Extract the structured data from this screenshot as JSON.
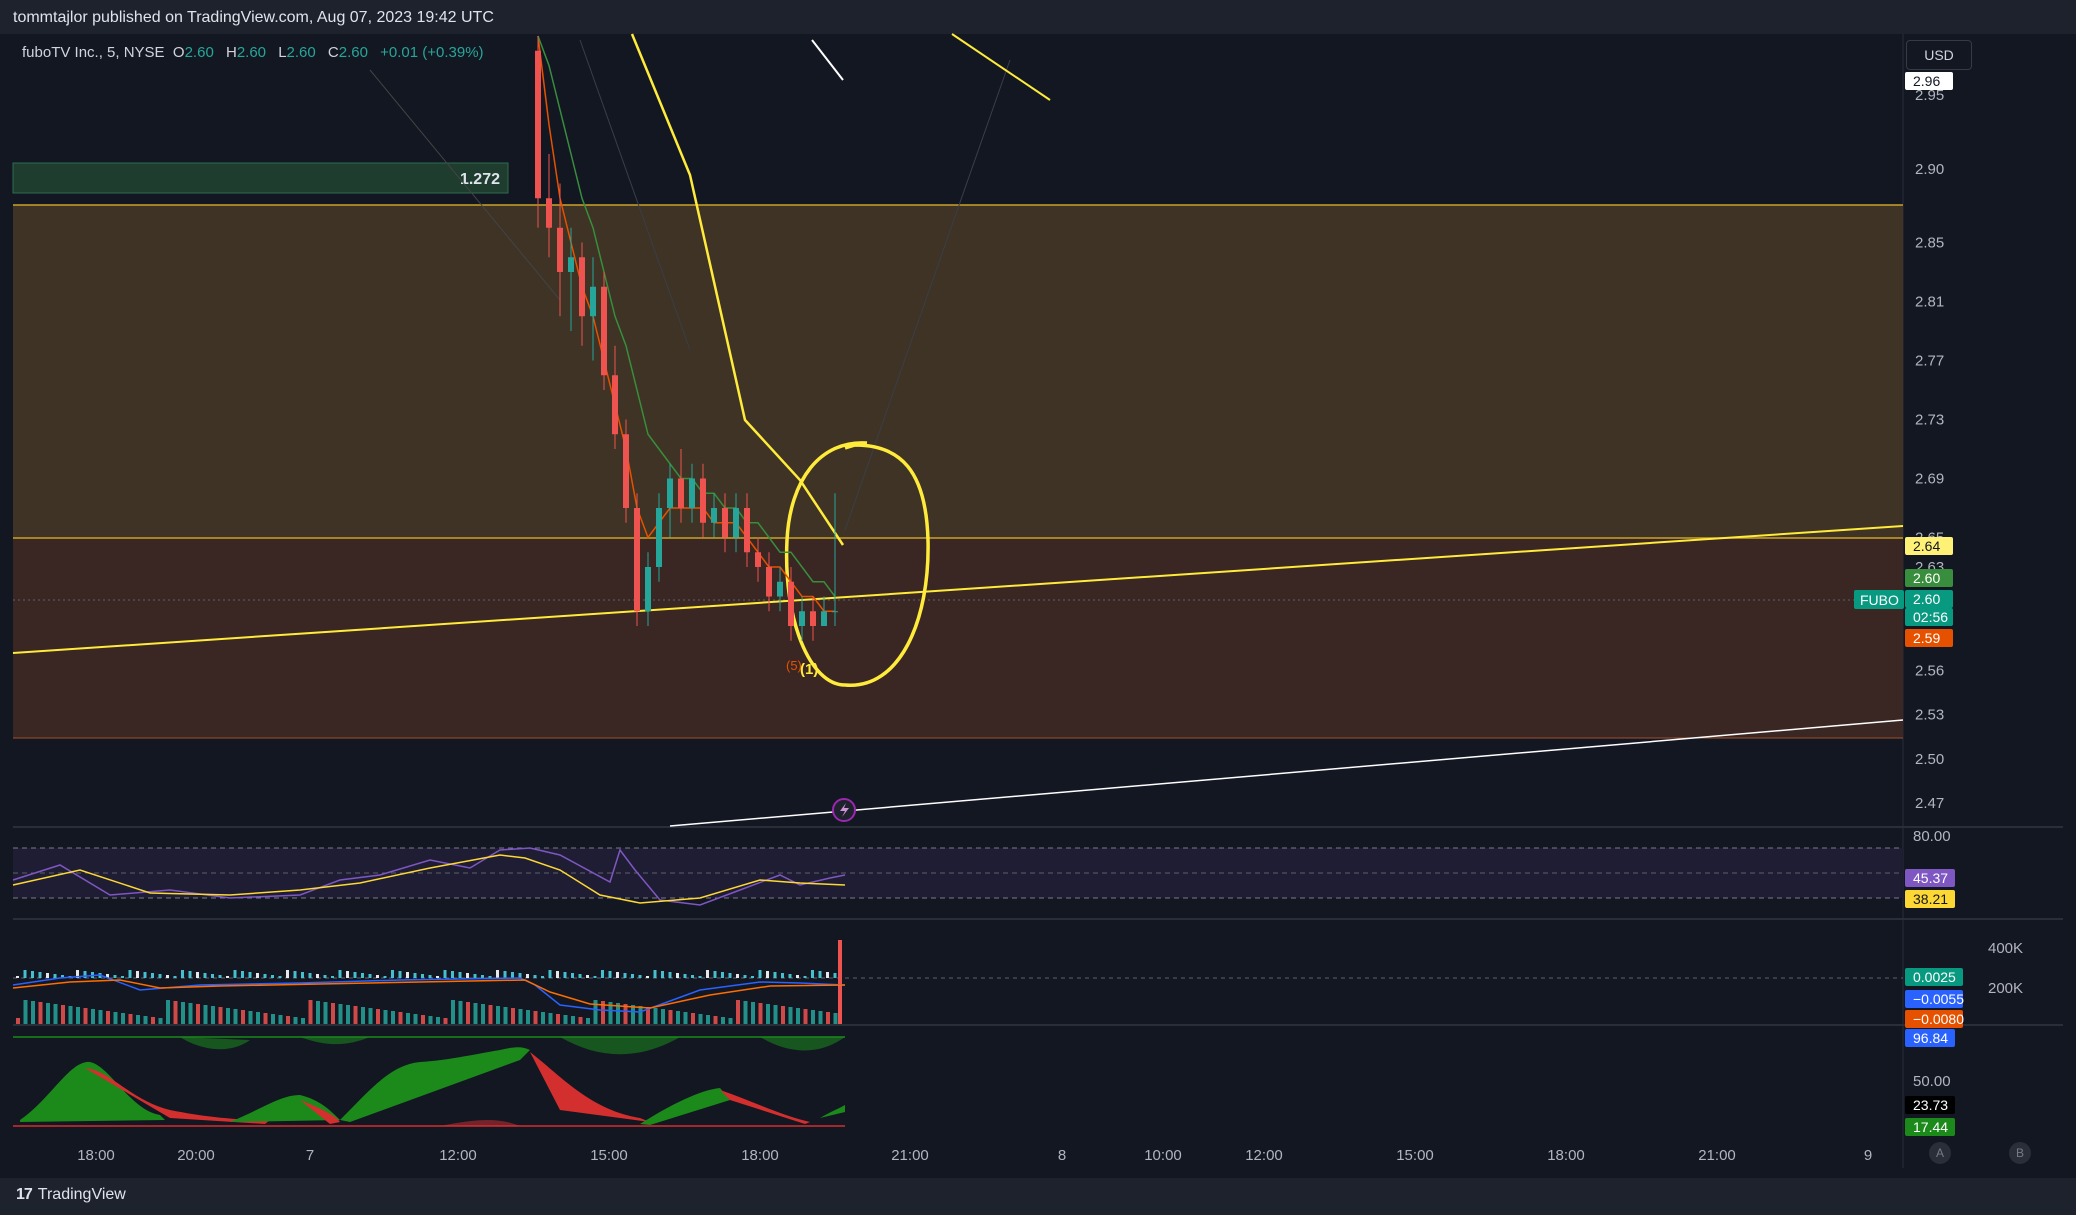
{
  "header": {
    "text": "tommtajlor published on TradingView.com, Aug 07, 2023 19:42 UTC"
  },
  "legend": {
    "symbol": "fuboTV Inc., 5, NYSE",
    "o_label": "O",
    "o": "2.60",
    "h_label": "H",
    "h": "2.60",
    "l_label": "L",
    "l": "2.60",
    "c_label": "C",
    "c": "2.60",
    "change": "+0.01 (+0.39%)"
  },
  "currency": "USD",
  "footer": {
    "logo_mark": "17",
    "brand": "TradingView"
  },
  "price_axis": {
    "ticks": [
      "2.95",
      "2.90",
      "2.85",
      "2.81",
      "2.77",
      "2.73",
      "2.69",
      "2.65",
      "2.63",
      "2.56",
      "2.53",
      "2.50",
      "2.47"
    ],
    "badges": [
      {
        "text": "2.96",
        "bg": "#ffffff",
        "fg": "#131722"
      },
      {
        "text": "2.64",
        "bg": "#fff176",
        "fg": "#131722"
      },
      {
        "text": "2.60",
        "bg": "#388e3c",
        "fg": "#ffffff"
      },
      {
        "text": "2.60",
        "bg": "#089981",
        "fg": "#ffffff"
      },
      {
        "text": "02:56",
        "bg": "#089981",
        "fg": "#ffffff"
      },
      {
        "text": "2.59",
        "bg": "#e65100",
        "fg": "#ffffff"
      }
    ],
    "symbol_tag": "FUBO"
  },
  "time_axis": {
    "ticks": [
      "18:00",
      "20:00",
      "7",
      "12:00",
      "15:00",
      "18:00",
      "21:00",
      "8",
      "10:00",
      "12:00",
      "15:00",
      "18:00",
      "21:00",
      "9"
    ]
  },
  "fib_label": "1.272",
  "wave_labels": [
    "(5)",
    "(1)"
  ],
  "rsi": {
    "level": "80.00",
    "badges": [
      {
        "text": "45.37",
        "bg": "#7e57c2"
      },
      {
        "text": "38.21",
        "bg": "#fdd835"
      }
    ]
  },
  "macd": {
    "vol_ticks": [
      "400K",
      "200K"
    ],
    "badges": [
      {
        "text": "0.0025",
        "bg": "#089981"
      },
      {
        "text": "−0.0055",
        "bg": "#2962ff"
      },
      {
        "text": "−0.0080",
        "bg": "#e65100"
      }
    ]
  },
  "osc": {
    "level": "50.00",
    "badges": [
      {
        "text": "96.84",
        "bg": "#2962ff"
      },
      {
        "text": "23.73",
        "bg": "#000000"
      },
      {
        "text": "17.44",
        "bg": "#1b8a1b"
      }
    ]
  },
  "corner_buttons": [
    "A",
    "B"
  ],
  "chart_data": {
    "type": "candlestick",
    "symbol": "FUBO",
    "interval": "5",
    "ylim": [
      2.45,
      2.99
    ],
    "last_price": 2.6,
    "price_levels": [
      2.87,
      2.645,
      2.51
    ],
    "candles": [
      {
        "o": 2.98,
        "h": 2.99,
        "l": 2.86,
        "c": 2.88
      },
      {
        "o": 2.88,
        "h": 2.91,
        "l": 2.84,
        "c": 2.86
      },
      {
        "o": 2.86,
        "h": 2.89,
        "l": 2.8,
        "c": 2.83
      },
      {
        "o": 2.83,
        "h": 2.86,
        "l": 2.79,
        "c": 2.84
      },
      {
        "o": 2.84,
        "h": 2.85,
        "l": 2.78,
        "c": 2.8
      },
      {
        "o": 2.8,
        "h": 2.84,
        "l": 2.77,
        "c": 2.82
      },
      {
        "o": 2.82,
        "h": 2.83,
        "l": 2.75,
        "c": 2.76
      },
      {
        "o": 2.76,
        "h": 2.78,
        "l": 2.71,
        "c": 2.72
      },
      {
        "o": 2.72,
        "h": 2.73,
        "l": 2.66,
        "c": 2.67
      },
      {
        "o": 2.67,
        "h": 2.68,
        "l": 2.59,
        "c": 2.6
      },
      {
        "o": 2.6,
        "h": 2.64,
        "l": 2.59,
        "c": 2.63
      },
      {
        "o": 2.63,
        "h": 2.68,
        "l": 2.62,
        "c": 2.67
      },
      {
        "o": 2.67,
        "h": 2.7,
        "l": 2.65,
        "c": 2.69
      },
      {
        "o": 2.69,
        "h": 2.71,
        "l": 2.66,
        "c": 2.67
      },
      {
        "o": 2.67,
        "h": 2.7,
        "l": 2.66,
        "c": 2.69
      },
      {
        "o": 2.69,
        "h": 2.7,
        "l": 2.65,
        "c": 2.66
      },
      {
        "o": 2.66,
        "h": 2.68,
        "l": 2.65,
        "c": 2.67
      },
      {
        "o": 2.67,
        "h": 2.68,
        "l": 2.64,
        "c": 2.65
      },
      {
        "o": 2.65,
        "h": 2.68,
        "l": 2.64,
        "c": 2.67
      },
      {
        "o": 2.67,
        "h": 2.68,
        "l": 2.63,
        "c": 2.64
      },
      {
        "o": 2.64,
        "h": 2.65,
        "l": 2.62,
        "c": 2.63
      },
      {
        "o": 2.63,
        "h": 2.64,
        "l": 2.6,
        "c": 2.61
      },
      {
        "o": 2.61,
        "h": 2.63,
        "l": 2.6,
        "c": 2.62
      },
      {
        "o": 2.62,
        "h": 2.63,
        "l": 2.58,
        "c": 2.59
      },
      {
        "o": 2.59,
        "h": 2.61,
        "l": 2.58,
        "c": 2.6
      },
      {
        "o": 2.6,
        "h": 2.61,
        "l": 2.58,
        "c": 2.59
      },
      {
        "o": 2.59,
        "h": 2.61,
        "l": 2.59,
        "c": 2.6
      },
      {
        "o": 2.6,
        "h": 2.68,
        "l": 2.59,
        "c": 2.6
      }
    ],
    "ema_fast": [
      2.99,
      2.93,
      2.88,
      2.85,
      2.82,
      2.8,
      2.77,
      2.74,
      2.71,
      2.67,
      2.65,
      2.66,
      2.67,
      2.67,
      2.67,
      2.67,
      2.66,
      2.66,
      2.66,
      2.65,
      2.64,
      2.63,
      2.63,
      2.62,
      2.61,
      2.61,
      2.6,
      2.6
    ],
    "ema_slow": [
      2.99,
      2.97,
      2.94,
      2.91,
      2.88,
      2.86,
      2.83,
      2.8,
      2.78,
      2.75,
      2.72,
      2.71,
      2.7,
      2.69,
      2.69,
      2.68,
      2.68,
      2.67,
      2.67,
      2.66,
      2.66,
      2.65,
      2.64,
      2.64,
      2.63,
      2.62,
      2.62,
      2.61
    ]
  }
}
